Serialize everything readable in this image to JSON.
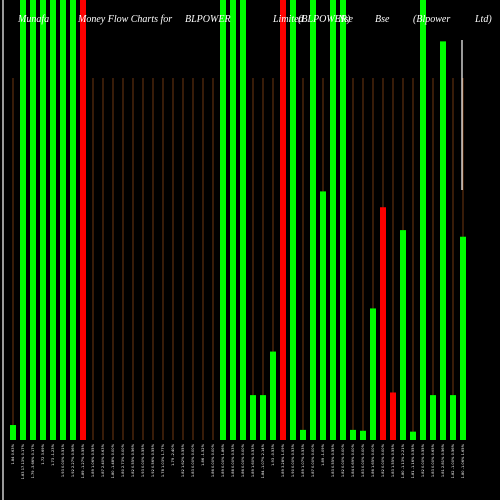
{
  "chart_data": {
    "type": "bar",
    "title_segments": [
      "Munafa",
      "Money Flow Charts for",
      "BLPOWER",
      "Limited",
      "(BLPOWER)",
      "Nse",
      "Bse",
      "(Blpower",
      "Ltd)"
    ],
    "ylim": [
      0,
      100
    ],
    "colors": {
      "background": "#000000",
      "up": "#00ff00",
      "down": "#ff0000",
      "guide": "#8b4513",
      "edge": "#ffffff"
    },
    "bars": [
      {
        "label": "1.84 0.63%",
        "value": 3.4,
        "color": "up"
      },
      {
        "label": "1.83 17.13% 0.17%",
        "value": 100,
        "color": "up"
      },
      {
        "label": "1.79 -3.66% 0.17%",
        "value": 100,
        "color": "up"
      },
      {
        "label": "1.72 3.69%",
        "value": 100,
        "color": "up"
      },
      {
        "label": "1.73 -1.23%",
        "value": 100,
        "color": "up"
      },
      {
        "label": "1.93 0.00% 0.51%",
        "value": 100,
        "color": "up"
      },
      {
        "label": "1.92 2.27% 0.56%",
        "value": 100,
        "color": "up"
      },
      {
        "label": "1.89 -1.27% 0.55%",
        "value": 100,
        "color": "down"
      },
      {
        "label": "1.89 1.06% 0.55%",
        "value": 0,
        "color": "up"
      },
      {
        "label": "1.87 2.40% 0.63%",
        "value": 0,
        "color": "up"
      },
      {
        "label": "1.80 -1.48% 0.00%",
        "value": 0,
        "color": "up"
      },
      {
        "label": "1.80 2.73% 0.00%",
        "value": 0,
        "color": "up"
      },
      {
        "label": "1.82 0.55% 0.56%",
        "value": 0,
        "color": "up"
      },
      {
        "label": "1.93 0.00% 0.55%",
        "value": 0,
        "color": "up"
      },
      {
        "label": "1.92 0.56% 0.55%",
        "value": 0,
        "color": "up"
      },
      {
        "label": "1.78 1.03% 1.77%",
        "value": 0,
        "color": "up"
      },
      {
        "label": "1.79 -2.40%",
        "value": 0,
        "color": "up"
      },
      {
        "label": "1.82 1.62% 0.55%",
        "value": 0,
        "color": "up"
      },
      {
        "label": "1.83 0.00% 0.00%",
        "value": 0,
        "color": "up"
      },
      {
        "label": "1.86 -1.52%",
        "value": 0,
        "color": "up"
      },
      {
        "label": "1.86 0.00% 0.00%",
        "value": 0,
        "color": "up"
      },
      {
        "label": "1.89 0.00% 1.86%",
        "value": 100,
        "color": "up"
      },
      {
        "label": "1.88 0.00% 0.53%",
        "value": 100,
        "color": "up"
      },
      {
        "label": "1.86 0.00% 0.00%",
        "value": 100,
        "color": "up"
      },
      {
        "label": "1.89 1.60% 0.53%",
        "value": 10.2,
        "color": "up"
      },
      {
        "label": "1.84 -1.07% 2.14%",
        "value": 10.2,
        "color": "up"
      },
      {
        "label": "1.93 -0.53%",
        "value": 20.1,
        "color": "up"
      },
      {
        "label": "1.89 3.28% 1.09%",
        "value": 100,
        "color": "down"
      },
      {
        "label": "1.90 0.00% 0.53%",
        "value": 100,
        "color": "up"
      },
      {
        "label": "1.89 1.07% 0.53%",
        "value": 2.3,
        "color": "up"
      },
      {
        "label": "1.87 0.00% 0.00%",
        "value": 100,
        "color": "up"
      },
      {
        "label": "1.89 -1.09%",
        "value": 56.5,
        "color": "up"
      },
      {
        "label": "1.83 0.55% 0.55%",
        "value": 100,
        "color": "up"
      },
      {
        "label": "1.82 0.00% 0.00%",
        "value": 100,
        "color": "up"
      },
      {
        "label": "1.84 0.69% 0.00%",
        "value": 2.3,
        "color": "up"
      },
      {
        "label": "1.83 0.00% 0.00%",
        "value": 2.1,
        "color": "up"
      },
      {
        "label": "1.86 1.65% 0.00%",
        "value": 29.9,
        "color": "up"
      },
      {
        "label": "1.82 0.00% 0.00%",
        "value": 52.9,
        "color": "down"
      },
      {
        "label": "1.83 1.55% 0.55%",
        "value": 10.8,
        "color": "down"
      },
      {
        "label": "1.80 -1.13% 2.21%",
        "value": 47.7,
        "color": "up"
      },
      {
        "label": "1.81 -1.16% 0.55%",
        "value": 1.9,
        "color": "up"
      },
      {
        "label": "1.82 0.00% 0.55%",
        "value": 100,
        "color": "up"
      },
      {
        "label": "1.83 0.00% 0.65%",
        "value": 10.2,
        "color": "up"
      },
      {
        "label": "1.81 2.81% 0.56%",
        "value": 90.6,
        "color": "up"
      },
      {
        "label": "1.82 -1.00% 0.56%",
        "value": 10.2,
        "color": "up"
      },
      {
        "label": "1.80 -1.06% 1.65%",
        "value": 46.2,
        "color": "up"
      }
    ]
  }
}
